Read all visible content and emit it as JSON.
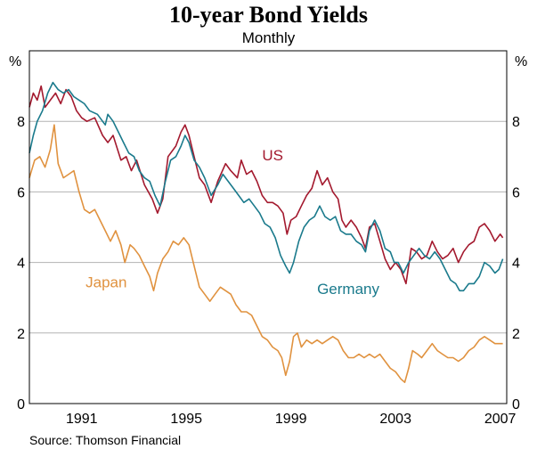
{
  "chart_data": {
    "type": "line",
    "title": "10-year Bond Yields",
    "subtitle": "Monthly",
    "ylabel_left": "%",
    "ylabel_right": "%",
    "ylim": [
      0,
      10
    ],
    "yticks": [
      0,
      2,
      4,
      6,
      8
    ],
    "xlim": [
      1989.0,
      2007.25
    ],
    "xticks": [
      1991,
      1995,
      1999,
      2003,
      2007
    ],
    "grid": true,
    "source": "Source: Thomson Financial",
    "series": [
      {
        "name": "US",
        "color": "#a3192e",
        "label": "US",
        "points": [
          [
            1989.0,
            8.4
          ],
          [
            1989.15,
            8.8
          ],
          [
            1989.3,
            8.6
          ],
          [
            1989.45,
            9.0
          ],
          [
            1989.6,
            8.4
          ],
          [
            1989.8,
            8.6
          ],
          [
            1990.0,
            8.8
          ],
          [
            1990.2,
            8.5
          ],
          [
            1990.4,
            8.9
          ],
          [
            1990.6,
            8.7
          ],
          [
            1990.8,
            8.3
          ],
          [
            1991.0,
            8.1
          ],
          [
            1991.2,
            8.0
          ],
          [
            1991.5,
            8.1
          ],
          [
            1991.8,
            7.6
          ],
          [
            1992.0,
            7.4
          ],
          [
            1992.2,
            7.6
          ],
          [
            1992.5,
            6.9
          ],
          [
            1992.7,
            7.0
          ],
          [
            1992.9,
            6.6
          ],
          [
            1993.1,
            6.9
          ],
          [
            1993.4,
            6.2
          ],
          [
            1993.7,
            5.8
          ],
          [
            1993.9,
            5.4
          ],
          [
            1994.1,
            5.8
          ],
          [
            1994.3,
            7.0
          ],
          [
            1994.6,
            7.3
          ],
          [
            1994.8,
            7.7
          ],
          [
            1994.95,
            7.9
          ],
          [
            1995.1,
            7.6
          ],
          [
            1995.3,
            7.0
          ],
          [
            1995.5,
            6.4
          ],
          [
            1995.7,
            6.2
          ],
          [
            1995.95,
            5.7
          ],
          [
            1996.2,
            6.3
          ],
          [
            1996.5,
            6.8
          ],
          [
            1996.7,
            6.6
          ],
          [
            1996.95,
            6.4
          ],
          [
            1997.1,
            6.9
          ],
          [
            1997.3,
            6.5
          ],
          [
            1997.5,
            6.6
          ],
          [
            1997.7,
            6.3
          ],
          [
            1997.9,
            5.9
          ],
          [
            1998.1,
            5.7
          ],
          [
            1998.3,
            5.7
          ],
          [
            1998.5,
            5.6
          ],
          [
            1998.7,
            5.4
          ],
          [
            1998.85,
            4.8
          ],
          [
            1999.0,
            5.2
          ],
          [
            1999.2,
            5.3
          ],
          [
            1999.4,
            5.6
          ],
          [
            1999.6,
            5.9
          ],
          [
            1999.8,
            6.1
          ],
          [
            2000.0,
            6.6
          ],
          [
            2000.2,
            6.2
          ],
          [
            2000.4,
            6.4
          ],
          [
            2000.6,
            6.0
          ],
          [
            2000.8,
            5.8
          ],
          [
            2000.95,
            5.2
          ],
          [
            2001.1,
            5.0
          ],
          [
            2001.3,
            5.2
          ],
          [
            2001.5,
            5.0
          ],
          [
            2001.7,
            4.7
          ],
          [
            2001.85,
            4.4
          ],
          [
            2002.0,
            5.0
          ],
          [
            2002.2,
            5.1
          ],
          [
            2002.4,
            4.6
          ],
          [
            2002.6,
            4.1
          ],
          [
            2002.8,
            3.8
          ],
          [
            2003.0,
            4.0
          ],
          [
            2003.2,
            3.8
          ],
          [
            2003.4,
            3.4
          ],
          [
            2003.6,
            4.4
          ],
          [
            2003.8,
            4.3
          ],
          [
            2004.0,
            4.1
          ],
          [
            2004.2,
            4.2
          ],
          [
            2004.4,
            4.6
          ],
          [
            2004.6,
            4.3
          ],
          [
            2004.8,
            4.1
          ],
          [
            2005.0,
            4.2
          ],
          [
            2005.2,
            4.4
          ],
          [
            2005.4,
            4.0
          ],
          [
            2005.6,
            4.3
          ],
          [
            2005.8,
            4.5
          ],
          [
            2006.0,
            4.6
          ],
          [
            2006.2,
            5.0
          ],
          [
            2006.4,
            5.1
          ],
          [
            2006.6,
            4.9
          ],
          [
            2006.8,
            4.6
          ],
          [
            2007.0,
            4.8
          ],
          [
            2007.1,
            4.7
          ]
        ]
      },
      {
        "name": "Germany",
        "color": "#1a7a8c",
        "label": "Germany",
        "points": [
          [
            1989.0,
            7.1
          ],
          [
            1989.15,
            7.6
          ],
          [
            1989.3,
            8.0
          ],
          [
            1989.5,
            8.3
          ],
          [
            1989.7,
            8.8
          ],
          [
            1989.9,
            9.1
          ],
          [
            1990.1,
            8.9
          ],
          [
            1990.3,
            8.8
          ],
          [
            1990.5,
            8.9
          ],
          [
            1990.7,
            8.7
          ],
          [
            1990.9,
            8.6
          ],
          [
            1991.1,
            8.5
          ],
          [
            1991.3,
            8.3
          ],
          [
            1991.6,
            8.2
          ],
          [
            1991.9,
            7.9
          ],
          [
            1992.0,
            8.2
          ],
          [
            1992.2,
            8.0
          ],
          [
            1992.4,
            7.7
          ],
          [
            1992.6,
            7.4
          ],
          [
            1992.8,
            7.1
          ],
          [
            1993.0,
            7.0
          ],
          [
            1993.2,
            6.6
          ],
          [
            1993.4,
            6.4
          ],
          [
            1993.6,
            6.3
          ],
          [
            1993.8,
            5.9
          ],
          [
            1994.0,
            5.6
          ],
          [
            1994.2,
            6.3
          ],
          [
            1994.4,
            6.9
          ],
          [
            1994.6,
            7.0
          ],
          [
            1994.8,
            7.3
          ],
          [
            1994.95,
            7.6
          ],
          [
            1995.1,
            7.4
          ],
          [
            1995.3,
            6.9
          ],
          [
            1995.5,
            6.7
          ],
          [
            1995.7,
            6.4
          ],
          [
            1995.95,
            5.9
          ],
          [
            1996.2,
            6.2
          ],
          [
            1996.4,
            6.5
          ],
          [
            1996.6,
            6.3
          ],
          [
            1996.8,
            6.1
          ],
          [
            1997.0,
            5.9
          ],
          [
            1997.2,
            5.7
          ],
          [
            1997.4,
            5.8
          ],
          [
            1997.6,
            5.6
          ],
          [
            1997.8,
            5.4
          ],
          [
            1998.0,
            5.1
          ],
          [
            1998.2,
            5.0
          ],
          [
            1998.4,
            4.7
          ],
          [
            1998.6,
            4.2
          ],
          [
            1998.8,
            3.9
          ],
          [
            1998.95,
            3.7
          ],
          [
            1999.1,
            4.0
          ],
          [
            1999.3,
            4.6
          ],
          [
            1999.5,
            5.0
          ],
          [
            1999.7,
            5.2
          ],
          [
            1999.9,
            5.3
          ],
          [
            2000.1,
            5.6
          ],
          [
            2000.3,
            5.3
          ],
          [
            2000.5,
            5.2
          ],
          [
            2000.7,
            5.3
          ],
          [
            2000.9,
            4.9
          ],
          [
            2001.1,
            4.8
          ],
          [
            2001.3,
            4.8
          ],
          [
            2001.5,
            4.6
          ],
          [
            2001.7,
            4.5
          ],
          [
            2001.85,
            4.3
          ],
          [
            2002.0,
            4.9
          ],
          [
            2002.2,
            5.2
          ],
          [
            2002.4,
            4.9
          ],
          [
            2002.6,
            4.4
          ],
          [
            2002.8,
            4.3
          ],
          [
            2002.95,
            4.0
          ],
          [
            2003.1,
            4.0
          ],
          [
            2003.3,
            3.7
          ],
          [
            2003.5,
            4.0
          ],
          [
            2003.7,
            4.2
          ],
          [
            2003.9,
            4.4
          ],
          [
            2004.1,
            4.2
          ],
          [
            2004.3,
            4.1
          ],
          [
            2004.5,
            4.3
          ],
          [
            2004.7,
            4.1
          ],
          [
            2004.9,
            3.8
          ],
          [
            2005.1,
            3.5
          ],
          [
            2005.3,
            3.4
          ],
          [
            2005.45,
            3.2
          ],
          [
            2005.6,
            3.2
          ],
          [
            2005.8,
            3.4
          ],
          [
            2006.0,
            3.4
          ],
          [
            2006.2,
            3.6
          ],
          [
            2006.4,
            4.0
          ],
          [
            2006.6,
            3.9
          ],
          [
            2006.8,
            3.7
          ],
          [
            2006.95,
            3.8
          ],
          [
            2007.1,
            4.1
          ]
        ]
      },
      {
        "name": "Japan",
        "color": "#e0923f",
        "label": "Japan",
        "points": [
          [
            1989.0,
            6.4
          ],
          [
            1989.2,
            6.9
          ],
          [
            1989.4,
            7.0
          ],
          [
            1989.6,
            6.7
          ],
          [
            1989.8,
            7.2
          ],
          [
            1989.95,
            7.9
          ],
          [
            1990.1,
            6.8
          ],
          [
            1990.3,
            6.4
          ],
          [
            1990.5,
            6.5
          ],
          [
            1990.7,
            6.6
          ],
          [
            1990.9,
            6.0
          ],
          [
            1991.1,
            5.5
          ],
          [
            1991.3,
            5.4
          ],
          [
            1991.5,
            5.5
          ],
          [
            1991.7,
            5.2
          ],
          [
            1991.9,
            4.9
          ],
          [
            1992.1,
            4.6
          ],
          [
            1992.3,
            4.9
          ],
          [
            1992.5,
            4.5
          ],
          [
            1992.65,
            4.0
          ],
          [
            1992.85,
            4.5
          ],
          [
            1993.0,
            4.4
          ],
          [
            1993.2,
            4.2
          ],
          [
            1993.4,
            3.9
          ],
          [
            1993.6,
            3.6
          ],
          [
            1993.75,
            3.2
          ],
          [
            1993.9,
            3.7
          ],
          [
            1994.1,
            4.1
          ],
          [
            1994.3,
            4.3
          ],
          [
            1994.5,
            4.6
          ],
          [
            1994.7,
            4.5
          ],
          [
            1994.9,
            4.7
          ],
          [
            1995.1,
            4.5
          ],
          [
            1995.3,
            3.9
          ],
          [
            1995.5,
            3.3
          ],
          [
            1995.7,
            3.1
          ],
          [
            1995.9,
            2.9
          ],
          [
            1996.1,
            3.1
          ],
          [
            1996.3,
            3.3
          ],
          [
            1996.5,
            3.2
          ],
          [
            1996.7,
            3.1
          ],
          [
            1996.9,
            2.8
          ],
          [
            1997.1,
            2.6
          ],
          [
            1997.3,
            2.6
          ],
          [
            1997.5,
            2.5
          ],
          [
            1997.7,
            2.2
          ],
          [
            1997.9,
            1.9
          ],
          [
            1998.1,
            1.8
          ],
          [
            1998.3,
            1.6
          ],
          [
            1998.5,
            1.5
          ],
          [
            1998.65,
            1.3
          ],
          [
            1998.8,
            0.8
          ],
          [
            1998.95,
            1.2
          ],
          [
            1999.1,
            1.9
          ],
          [
            1999.25,
            2.0
          ],
          [
            1999.4,
            1.6
          ],
          [
            1999.6,
            1.8
          ],
          [
            1999.8,
            1.7
          ],
          [
            2000.0,
            1.8
          ],
          [
            2000.2,
            1.7
          ],
          [
            2000.4,
            1.8
          ],
          [
            2000.6,
            1.9
          ],
          [
            2000.8,
            1.8
          ],
          [
            2001.0,
            1.5
          ],
          [
            2001.2,
            1.3
          ],
          [
            2001.4,
            1.3
          ],
          [
            2001.6,
            1.4
          ],
          [
            2001.8,
            1.3
          ],
          [
            2002.0,
            1.4
          ],
          [
            2002.2,
            1.3
          ],
          [
            2002.4,
            1.4
          ],
          [
            2002.6,
            1.2
          ],
          [
            2002.8,
            1.0
          ],
          [
            2003.0,
            0.9
          ],
          [
            2003.2,
            0.7
          ],
          [
            2003.35,
            0.6
          ],
          [
            2003.5,
            1.0
          ],
          [
            2003.65,
            1.5
          ],
          [
            2003.85,
            1.4
          ],
          [
            2004.0,
            1.3
          ],
          [
            2004.2,
            1.5
          ],
          [
            2004.4,
            1.7
          ],
          [
            2004.6,
            1.5
          ],
          [
            2004.8,
            1.4
          ],
          [
            2005.0,
            1.3
          ],
          [
            2005.2,
            1.3
          ],
          [
            2005.4,
            1.2
          ],
          [
            2005.6,
            1.3
          ],
          [
            2005.8,
            1.5
          ],
          [
            2006.0,
            1.6
          ],
          [
            2006.2,
            1.8
          ],
          [
            2006.4,
            1.9
          ],
          [
            2006.6,
            1.8
          ],
          [
            2006.8,
            1.7
          ],
          [
            2006.95,
            1.7
          ],
          [
            2007.1,
            1.7
          ]
        ]
      }
    ]
  }
}
